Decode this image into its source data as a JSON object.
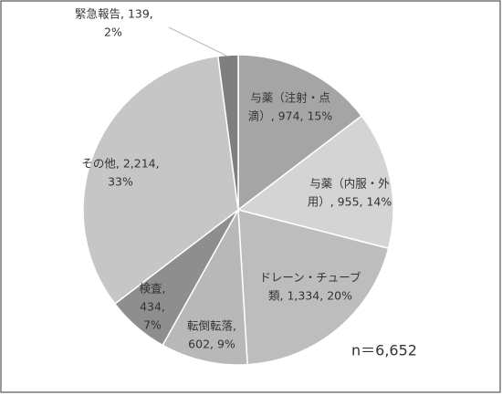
{
  "chart_data": {
    "type": "pie",
    "categories": [
      "与薬（注射・点滴）",
      "与薬（内服・外用）",
      "ドレーン・チューブ類",
      "転倒転落",
      "検査",
      "その他",
      "緊急報告"
    ],
    "values": [
      974,
      955,
      1334,
      602,
      434,
      2214,
      139
    ],
    "data_labels": [
      [
        "与薬（注射・点",
        "滴）, 974, 15%"
      ],
      [
        "与薬（内服・外",
        "用）, 955, 14%"
      ],
      [
        "ドレーン・チューブ",
        "類, 1,334, 20%"
      ],
      [
        "転倒転落,",
        "602, 9%"
      ],
      [
        "検査,",
        "434,",
        "7%"
      ],
      [
        "その他, 2,214,",
        "33%"
      ],
      [
        "緊急報告, 139,",
        "2%"
      ]
    ],
    "colors": [
      "#a5a5a5",
      "#d4d4d4",
      "#bdbdbd",
      "#b8b8b8",
      "#8e8e8e",
      "#c6c6c6",
      "#7f7f7f"
    ],
    "annotation": "n＝6,652"
  }
}
